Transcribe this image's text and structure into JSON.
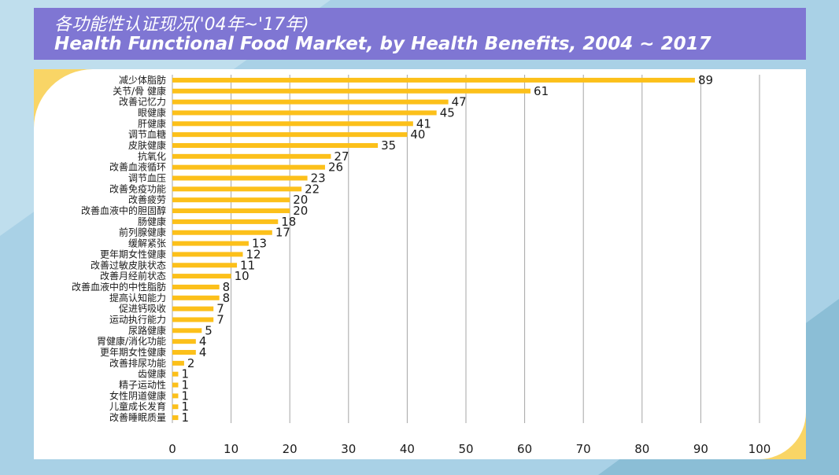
{
  "header": {
    "title_cn": "各功能性认证现况('04年~'17年)",
    "title_en": "Health Functional Food Market, by Health Benefits, 2004 ~ 2017"
  },
  "colors": {
    "bar": "#fcc01a",
    "header_bg": "#7f76d3",
    "grid": "#a6a6a6",
    "page_bg": "#a9d1e6",
    "accent_yellow": "#f9d566"
  },
  "chart_data": {
    "type": "bar",
    "orientation": "horizontal",
    "categories": [
      "减少体脂肪",
      "关节/骨 健康",
      "改善记忆力",
      "眼健康",
      "肝健康",
      "调节血糖",
      "皮肤健康",
      "抗氧化",
      "改善血液循环",
      "调节血压",
      "改善免疫功能",
      "改善疲劳",
      "改善血液中的胆固醇",
      "肠健康",
      "前列腺健康",
      "缓解紧张",
      "更年期女性健康",
      "改善过敏皮肤状态",
      "改善月经前状态",
      "改善血液中的中性脂肪",
      "提高认知能力",
      "促进钙吸收",
      "运动执行能力",
      "尿路健康",
      "胃健康/消化功能",
      "更年期女性健康",
      "改善排尿功能",
      "齿健康",
      "精子运动性",
      "女性阴道健康",
      "儿童成长发育",
      "改善睡眠质量"
    ],
    "values": [
      89,
      61,
      47,
      45,
      41,
      40,
      35,
      27,
      26,
      23,
      22,
      20,
      20,
      18,
      17,
      13,
      12,
      11,
      10,
      8,
      8,
      7,
      7,
      5,
      4,
      4,
      2,
      1,
      1,
      1,
      1,
      1
    ],
    "xlim": [
      0,
      100
    ],
    "xticks": [
      0,
      10,
      20,
      30,
      40,
      50,
      60,
      70,
      80,
      90,
      100
    ],
    "grid": true,
    "data_labels": true
  }
}
